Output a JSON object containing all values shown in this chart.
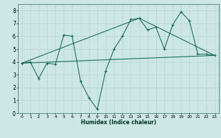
{
  "xlabel": "Humidex (Indice chaleur)",
  "bg_color": "#cde8e4",
  "grid_color": "#b8d8d4",
  "line_color": "#1a6b5a",
  "xlim": [
    -0.5,
    23.5
  ],
  "ylim": [
    0,
    8.5
  ],
  "xticks": [
    0,
    1,
    2,
    3,
    4,
    5,
    6,
    7,
    8,
    9,
    10,
    11,
    12,
    13,
    14,
    15,
    16,
    17,
    18,
    19,
    20,
    21,
    22,
    23
  ],
  "yticks": [
    0,
    1,
    2,
    3,
    4,
    5,
    6,
    7,
    8
  ],
  "series1_x": [
    0,
    1,
    2,
    3,
    4,
    5,
    6,
    7,
    8,
    9,
    10,
    11,
    12,
    13,
    14,
    15,
    16,
    17,
    18,
    19,
    20,
    21,
    22,
    23
  ],
  "series1_y": [
    3.9,
    4.0,
    2.7,
    3.9,
    3.8,
    6.1,
    6.0,
    2.5,
    1.2,
    0.3,
    3.3,
    5.0,
    6.0,
    7.3,
    7.4,
    6.5,
    6.7,
    5.0,
    6.9,
    7.9,
    7.2,
    4.6,
    4.6,
    4.5
  ],
  "series2_x": [
    0,
    23
  ],
  "series2_y": [
    3.9,
    4.5
  ],
  "series3_x": [
    0,
    14,
    23
  ],
  "series3_y": [
    3.9,
    7.4,
    4.5
  ]
}
